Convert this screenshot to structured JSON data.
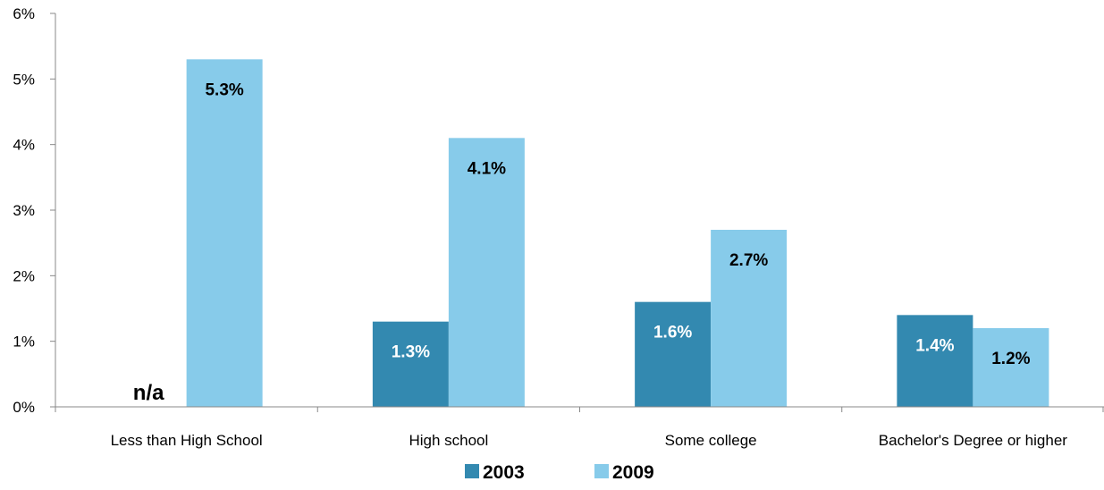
{
  "chart_data": {
    "type": "bar",
    "categories": [
      "Less than High School",
      "High school",
      "Some college",
      "Bachelor's Degree or higher"
    ],
    "series": [
      {
        "name": "2003",
        "color": "#3389b0",
        "values": [
          null,
          1.3,
          1.6,
          1.4
        ],
        "labels": [
          "n/a",
          "1.3%",
          "1.6%",
          "1.4%"
        ],
        "label_color": "#ffffff"
      },
      {
        "name": "2009",
        "color": "#87cbea",
        "values": [
          5.3,
          4.1,
          2.7,
          1.2
        ],
        "labels": [
          "5.3%",
          "4.1%",
          "2.7%",
          "1.2%"
        ],
        "label_color": "#000000"
      }
    ],
    "y_ticks": [
      "0%",
      "1%",
      "2%",
      "3%",
      "4%",
      "5%",
      "6%"
    ],
    "ylim": [
      0,
      6
    ],
    "legend_position": "bottom",
    "grid": false
  }
}
